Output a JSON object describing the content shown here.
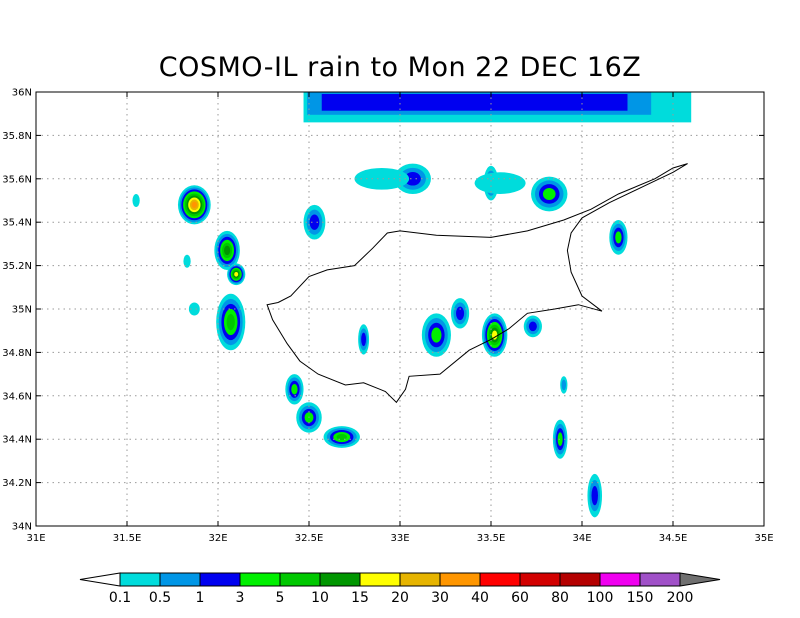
{
  "title": "COSMO-IL rain to Mon 22 DEC 16Z",
  "map": {
    "lon_range": [
      31,
      35
    ],
    "lat_range": [
      34,
      36
    ],
    "lon_ticks": [
      "31E",
      "31.5E",
      "32E",
      "32.5E",
      "33E",
      "33.5E",
      "34E",
      "34.5E",
      "35E"
    ],
    "lat_ticks": [
      "34N",
      "34.2N",
      "34.4N",
      "34.6N",
      "34.8N",
      "35N",
      "35.2N",
      "35.4N",
      "35.6N",
      "35.8N",
      "36N"
    ],
    "grid": true,
    "coastline": [
      [
        32.33,
        35.03
      ],
      [
        32.4,
        35.06
      ],
      [
        32.5,
        35.15
      ],
      [
        32.6,
        35.18
      ],
      [
        32.75,
        35.2
      ],
      [
        32.85,
        35.28
      ],
      [
        32.93,
        35.35
      ],
      [
        33.0,
        35.36
      ],
      [
        33.2,
        35.34
      ],
      [
        33.5,
        35.33
      ],
      [
        33.7,
        35.36
      ],
      [
        33.9,
        35.41
      ],
      [
        34.05,
        35.46
      ],
      [
        34.2,
        35.53
      ],
      [
        34.4,
        35.6
      ],
      [
        34.5,
        35.65
      ],
      [
        34.58,
        35.67
      ],
      [
        34.5,
        35.63
      ],
      [
        34.35,
        35.57
      ],
      [
        34.15,
        35.49
      ],
      [
        34.0,
        35.42
      ],
      [
        33.94,
        35.35
      ],
      [
        33.92,
        35.27
      ],
      [
        33.94,
        35.17
      ],
      [
        34.0,
        35.06
      ],
      [
        34.11,
        34.99
      ],
      [
        33.98,
        35.02
      ],
      [
        33.85,
        35.0
      ],
      [
        33.7,
        34.98
      ],
      [
        33.6,
        34.91
      ],
      [
        33.5,
        34.86
      ],
      [
        33.38,
        34.81
      ],
      [
        33.22,
        34.7
      ],
      [
        33.05,
        34.69
      ],
      [
        33.03,
        34.63
      ],
      [
        32.98,
        34.57
      ],
      [
        32.92,
        34.62
      ],
      [
        32.8,
        34.66
      ],
      [
        32.7,
        34.65
      ],
      [
        32.55,
        34.7
      ],
      [
        32.45,
        34.76
      ],
      [
        32.38,
        34.84
      ],
      [
        32.3,
        34.95
      ],
      [
        32.27,
        35.02
      ],
      [
        32.33,
        35.03
      ]
    ],
    "rain_cells": [
      {
        "lon": 31.87,
        "lat": 35.48,
        "rx": 0.09,
        "ry": 0.09,
        "level": 9
      },
      {
        "lon": 32.05,
        "lat": 35.27,
        "rx": 0.07,
        "ry": 0.09,
        "level": 6
      },
      {
        "lon": 32.1,
        "lat": 35.16,
        "rx": 0.05,
        "ry": 0.05,
        "level": 7
      },
      {
        "lon": 32.07,
        "lat": 34.94,
        "rx": 0.08,
        "ry": 0.13,
        "level": 5
      },
      {
        "lon": 33.52,
        "lat": 34.88,
        "rx": 0.07,
        "ry": 0.1,
        "level": 7
      },
      {
        "lon": 33.07,
        "lat": 35.6,
        "rx": 0.1,
        "ry": 0.07,
        "level": 3
      },
      {
        "lon": 33.82,
        "lat": 35.53,
        "rx": 0.1,
        "ry": 0.08,
        "level": 4
      },
      {
        "lon": 34.2,
        "lat": 35.33,
        "rx": 0.05,
        "ry": 0.08,
        "level": 4
      },
      {
        "lon": 33.2,
        "lat": 34.88,
        "rx": 0.08,
        "ry": 0.1,
        "level": 4
      },
      {
        "lon": 33.33,
        "lat": 34.98,
        "rx": 0.05,
        "ry": 0.07,
        "level": 3
      },
      {
        "lon": 33.73,
        "lat": 34.92,
        "rx": 0.05,
        "ry": 0.05,
        "level": 3
      },
      {
        "lon": 32.68,
        "lat": 34.41,
        "rx": 0.1,
        "ry": 0.05,
        "level": 5
      },
      {
        "lon": 32.5,
        "lat": 34.5,
        "rx": 0.07,
        "ry": 0.07,
        "level": 4
      },
      {
        "lon": 32.42,
        "lat": 34.63,
        "rx": 0.05,
        "ry": 0.07,
        "level": 4
      },
      {
        "lon": 33.88,
        "lat": 34.4,
        "rx": 0.04,
        "ry": 0.09,
        "level": 4
      },
      {
        "lon": 34.07,
        "lat": 34.14,
        "rx": 0.04,
        "ry": 0.1,
        "level": 3
      },
      {
        "lon": 32.53,
        "lat": 35.4,
        "rx": 0.06,
        "ry": 0.08,
        "level": 3
      },
      {
        "lon": 32.8,
        "lat": 34.86,
        "rx": 0.03,
        "ry": 0.07,
        "level": 3
      },
      {
        "lon": 33.5,
        "lat": 35.58,
        "rx": 0.04,
        "ry": 0.08,
        "level": 3
      },
      {
        "lon": 32.9,
        "lat": 35.6,
        "rx": 0.15,
        "ry": 0.05,
        "level": 1
      },
      {
        "lon": 33.55,
        "lat": 35.58,
        "rx": 0.14,
        "ry": 0.05,
        "level": 1
      },
      {
        "lon": 31.87,
        "lat": 35.0,
        "rx": 0.03,
        "ry": 0.03,
        "level": 1
      },
      {
        "lon": 31.83,
        "lat": 35.22,
        "rx": 0.02,
        "ry": 0.03,
        "level": 1
      },
      {
        "lon": 31.55,
        "lat": 35.5,
        "rx": 0.02,
        "ry": 0.03,
        "level": 1
      },
      {
        "lon": 33.9,
        "lat": 34.65,
        "rx": 0.02,
        "ry": 0.04,
        "level": 2
      }
    ],
    "rain_band": {
      "lon_start": 32.47,
      "lon_end": 34.6,
      "lat_top": 36.0,
      "lat_bottom": 35.86,
      "core_lon_start": 32.57,
      "core_lon_end": 34.25,
      "core_level": 3
    }
  },
  "colorbar": {
    "labels": [
      "0.1",
      "0.5",
      "1",
      "3",
      "5",
      "10",
      "15",
      "20",
      "30",
      "40",
      "60",
      "80",
      "100",
      "150",
      "200"
    ],
    "colors": [
      "#00dcdc",
      "#0096e6",
      "#0000f0",
      "#00f000",
      "#00c800",
      "#009600",
      "#ffff00",
      "#e6b400",
      "#ff9600",
      "#ff0000",
      "#d20000",
      "#b40000",
      "#f000f0",
      "#a050c8"
    ],
    "under_color": "#ffffff",
    "over_color": "#707070"
  }
}
